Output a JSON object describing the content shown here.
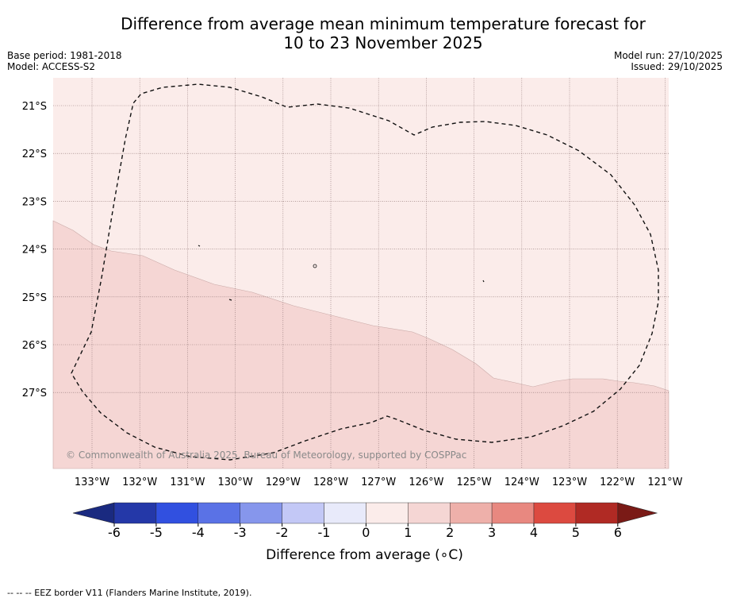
{
  "title_line1": "Difference from average mean minimum temperature forecast for",
  "title_line2": "10 to 23 November 2025",
  "base_period": "Base period: 1981-2018",
  "model": "Model: ACCESS-S2",
  "model_run": "Model run: 27/10/2025",
  "issued": "Issued: 29/10/2025",
  "copyright": "© Commonwealth of Australia 2025, Bureau of Meteorology, supported by COSPPac",
  "lat_labels": [
    "21°S",
    "22°S",
    "23°S",
    "24°S",
    "25°S",
    "26°S",
    "27°S"
  ],
  "lon_labels": [
    "133°W",
    "132°W",
    "131°W",
    "130°W",
    "129°W",
    "128°W",
    "127°W",
    "126°W",
    "125°W",
    "124°W",
    "123°W",
    "122°W",
    "121°W"
  ],
  "colorbar": {
    "ticks": [
      "-6",
      "-5",
      "-4",
      "-3",
      "-2",
      "-1",
      "0",
      "1",
      "2",
      "3",
      "4",
      "5",
      "6"
    ],
    "colors": [
      "#2438a8",
      "#3150e0",
      "#5a72e6",
      "#8696ec",
      "#c3c8f6",
      "#e8eafa",
      "#fbecea",
      "#f5d6d4",
      "#eeb0aa",
      "#e88880",
      "#dc4a40",
      "#b02a24"
    ],
    "under_color": "#1a2a80",
    "over_color": "#7a1a16",
    "label": "Difference from average (∘C)"
  },
  "regions": {
    "north_color": "#fbecea",
    "south_color": "#f5d6d4",
    "north_range": "0 to 1",
    "south_range": "1 to 2"
  },
  "footnote": "--  --  -- EEZ border V11 (Flanders Marine Institute, 2019)."
}
